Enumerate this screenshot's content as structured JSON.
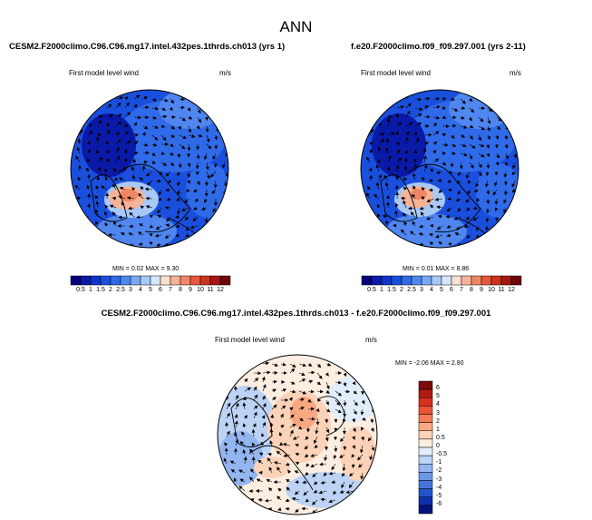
{
  "title": "ANN",
  "panels": [
    {
      "title": "CESM2.F2000climo.C96.C96.mg17.intel.432pes.1thrds.ch013 (yrs 1)",
      "field": "First model level wind",
      "units": "m/s",
      "min_label": "MIN =",
      "min": "0.02",
      "max_label": "MAX =",
      "max": "9.30"
    },
    {
      "title": "f.e20.F2000climo.f09_f09.297.001 (yrs 2-11)",
      "field": "First model level wind",
      "units": "m/s",
      "min_label": "MIN =",
      "min": "0.01",
      "max_label": "MAX =",
      "max": "8.86"
    },
    {
      "title": "CESM2.F2000climo.C96.C96.mg17.intel.432pes.1thrds.ch013 - f.e20.F2000climo.f09_f09.297.001",
      "field": "First model level wind",
      "units": "m/s",
      "min_label": "MIN =",
      "min": "-2.06",
      "max_label": "MAX =",
      "max": "2.80"
    }
  ],
  "colorbar_main": {
    "ticks": [
      "0.5",
      "1",
      "1.5",
      "2",
      "2.5",
      "3",
      "4",
      "5",
      "6",
      "7",
      "8",
      "9",
      "10",
      "11",
      "12"
    ],
    "colors": [
      "#08007a",
      "#0a1aa8",
      "#1034c8",
      "#1a4fdd",
      "#2f6ae8",
      "#4f86ef",
      "#79a7f4",
      "#a8c8f8",
      "#d6e6fb",
      "#fbdfcf",
      "#f6b398",
      "#f08665",
      "#e5583a",
      "#cc3220",
      "#a31810",
      "#6e0508"
    ]
  },
  "colorbar_diff": {
    "ticks": [
      "6",
      "5",
      "4",
      "3",
      "2",
      "1",
      "0.5",
      "0",
      "-0.5",
      "-1",
      "-2",
      "-3",
      "-4",
      "-5",
      "-6"
    ],
    "colors": [
      "#7a0b0b",
      "#b01a12",
      "#d6311c",
      "#ea5436",
      "#f37d57",
      "#f9a982",
      "#fcd2b8",
      "#fdeee2",
      "#e2edfb",
      "#bcd3f6",
      "#93b6f0",
      "#6d96e8",
      "#4675dc",
      "#2452c8",
      "#0f30a8",
      "#05147a"
    ]
  }
}
